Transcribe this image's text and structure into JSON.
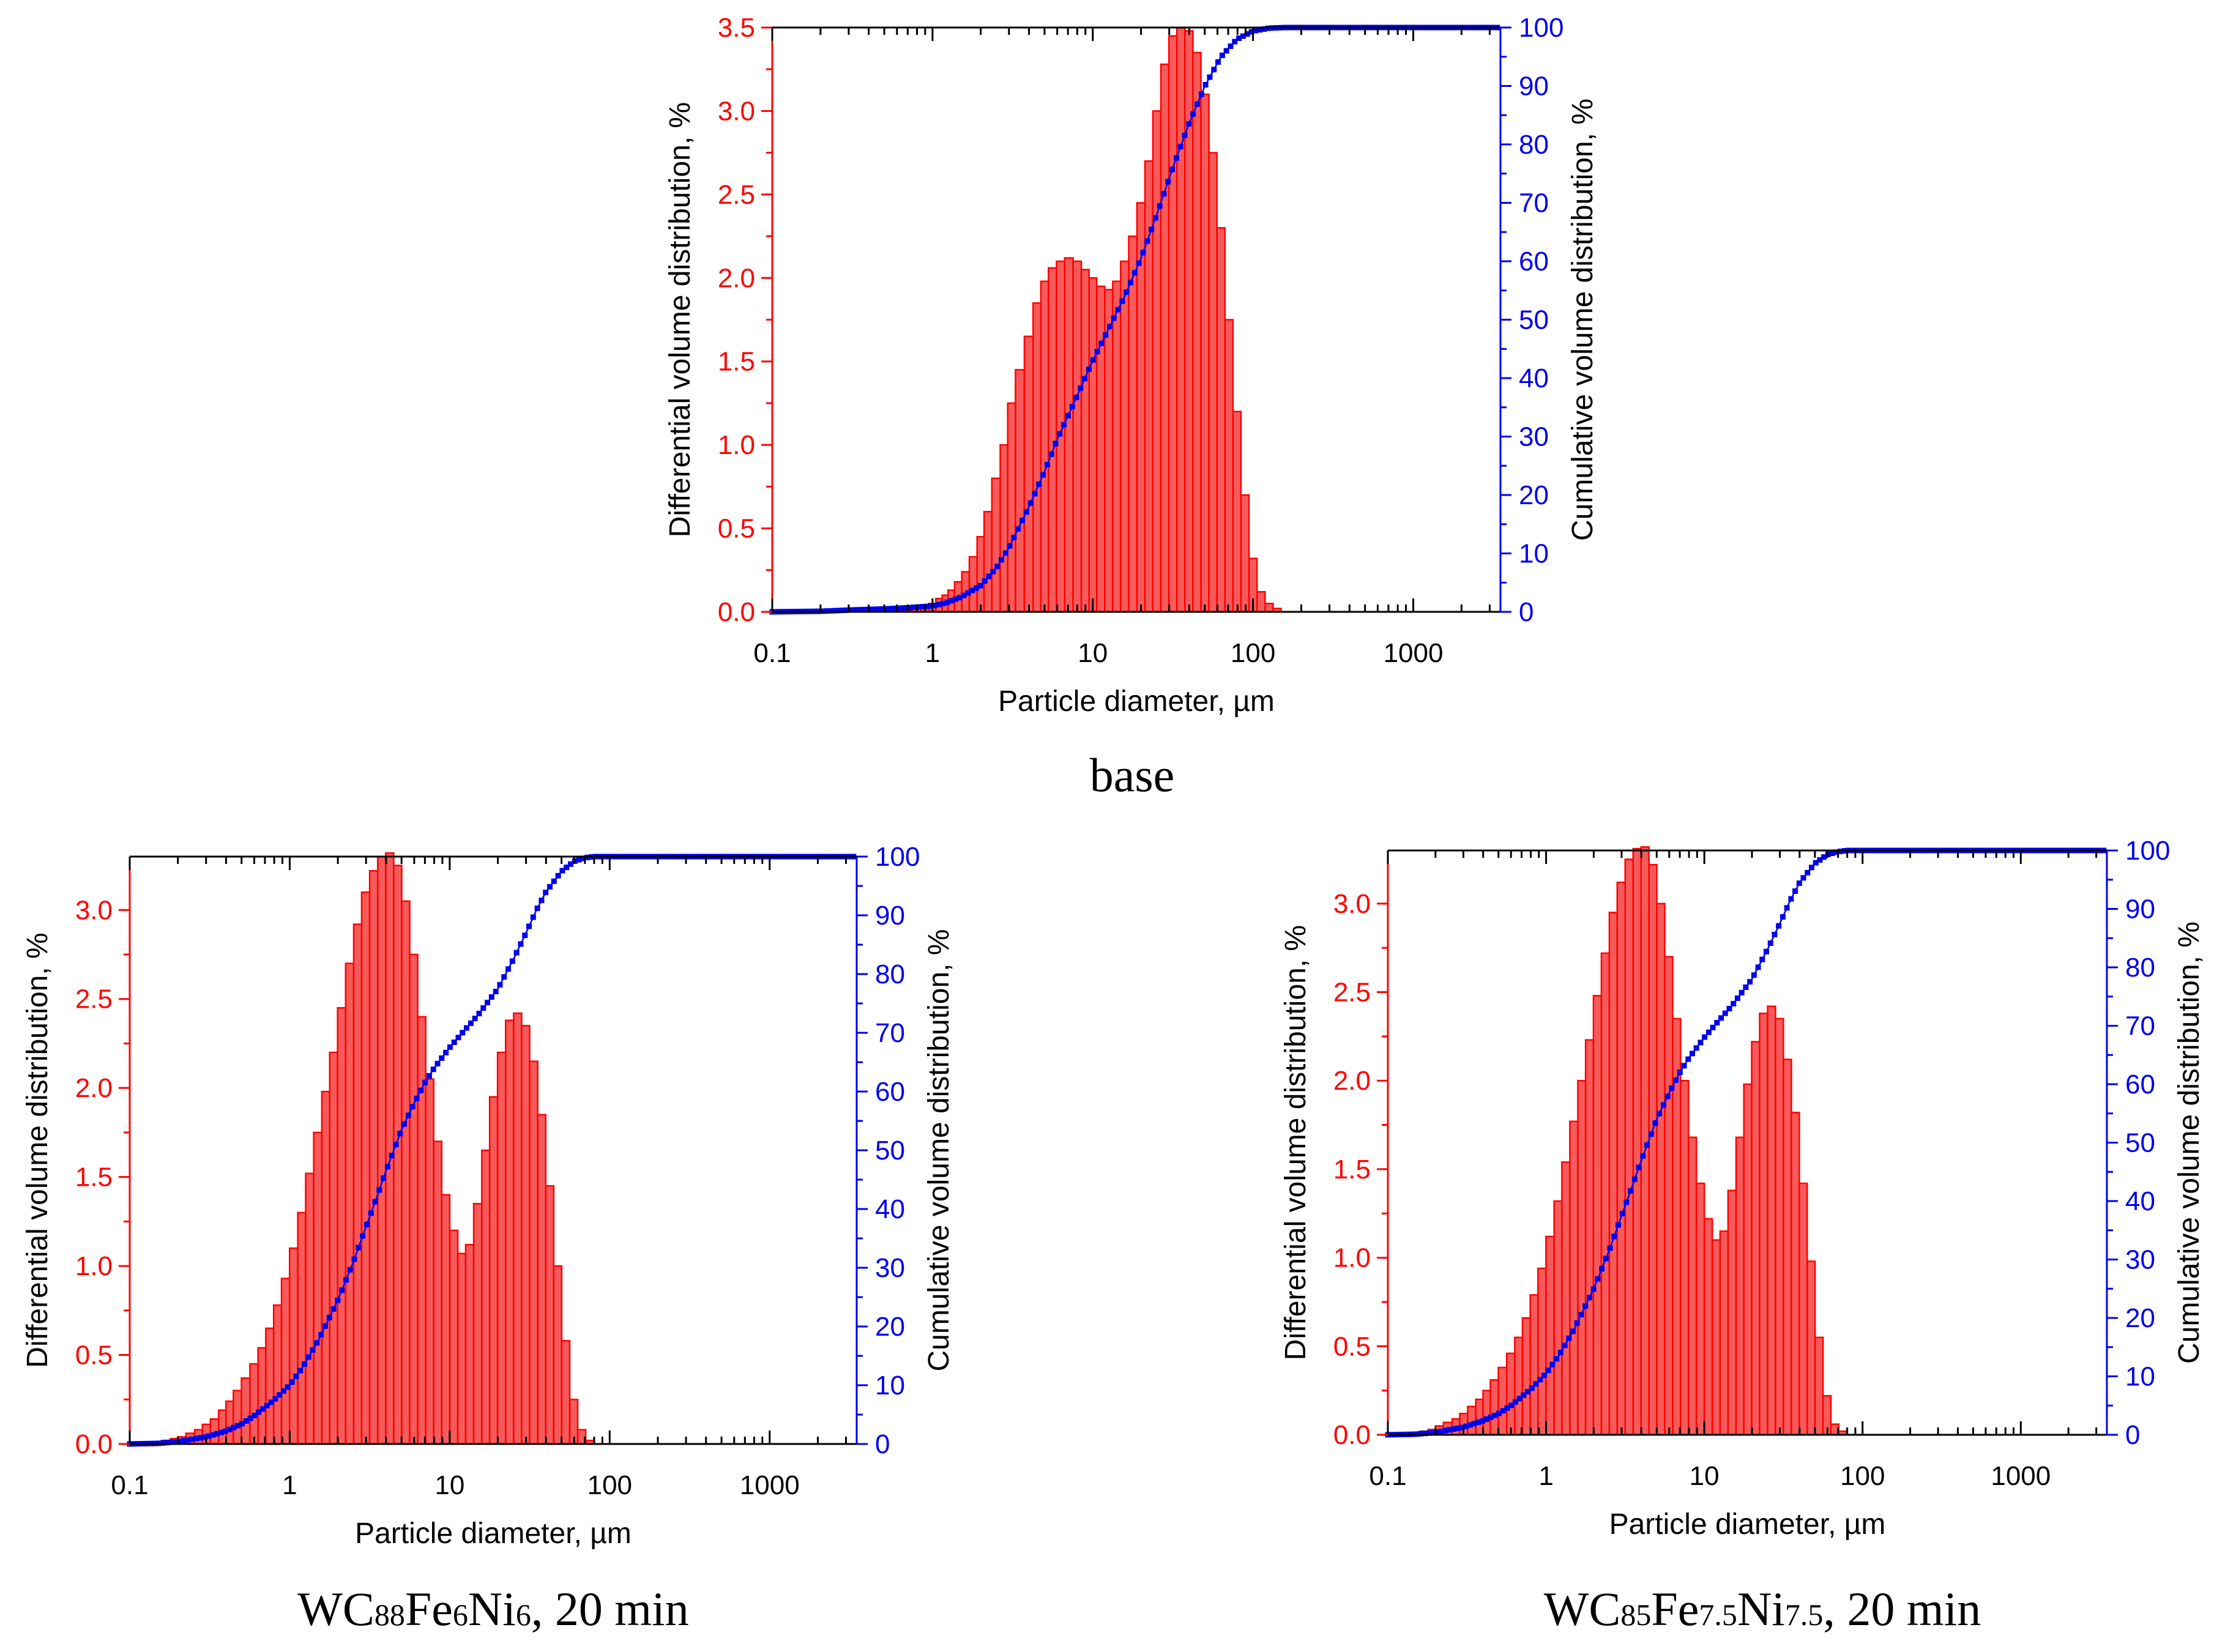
{
  "colors": {
    "differential": "#ff0000",
    "cumulative": "#0000ee",
    "axis": "#000000"
  },
  "chart_data": [
    {
      "type": "bar",
      "panel": "base",
      "caption": "base",
      "xscale": "log",
      "xlim": [
        0.1,
        3500
      ],
      "xticks": [
        0.1,
        1,
        10,
        100,
        1000
      ],
      "xtick_labels": [
        "0.1",
        "1",
        "10",
        "100",
        "1000"
      ],
      "xlabel": "Particle diameter, µm",
      "ylabel": "Differential volume distribution, %",
      "y2label": "Cumulative volume distribution, %",
      "ylim": [
        0,
        3.5
      ],
      "yticks": [
        0.0,
        0.5,
        1.0,
        1.5,
        2.0,
        2.5,
        3.0,
        3.5
      ],
      "ytick_labels": [
        "0.0",
        "0.5",
        "1.0",
        "1.5",
        "2.0",
        "2.5",
        "3.0",
        "3.5"
      ],
      "y2lim": [
        0,
        100
      ],
      "y2ticks": [
        0,
        10,
        20,
        30,
        40,
        50,
        60,
        70,
        80,
        90,
        100
      ],
      "y2tick_labels": [
        "0",
        "10",
        "20",
        "30",
        "40",
        "50",
        "60",
        "70",
        "80",
        "90",
        "100"
      ],
      "series": [
        {
          "name": "Differential volume distribution",
          "kind": "bar",
          "axis": "left",
          "x": [
            0.25,
            0.3,
            0.35,
            0.4,
            0.5,
            0.6,
            0.7,
            0.8,
            0.9,
            1.0,
            1.1,
            1.2,
            1.3,
            1.45,
            1.6,
            1.8,
            2.0,
            2.2,
            2.5,
            2.8,
            3.1,
            3.5,
            4.0,
            4.5,
            5.0,
            5.6,
            6.3,
            7.1,
            8.0,
            9.0,
            10.0,
            11.2,
            12.6,
            14.1,
            15.8,
            17.8,
            20.0,
            22.4,
            25.1,
            28.2,
            31.6,
            35.5,
            39.8,
            44.7,
            50.1,
            56.2,
            63.1,
            70.8,
            79.4,
            89.1,
            100.0,
            112.2,
            125.9,
            141.3
          ],
          "values": [
            0.01,
            0.02,
            0.02,
            0.02,
            0.01,
            0.01,
            0.01,
            0.02,
            0.03,
            0.05,
            0.08,
            0.1,
            0.13,
            0.18,
            0.24,
            0.33,
            0.45,
            0.6,
            0.8,
            1.0,
            1.25,
            1.45,
            1.65,
            1.85,
            1.98,
            2.06,
            2.1,
            2.12,
            2.1,
            2.05,
            2.0,
            1.95,
            1.93,
            1.98,
            2.1,
            2.25,
            2.45,
            2.7,
            3.0,
            3.28,
            3.45,
            3.5,
            3.48,
            3.35,
            3.1,
            2.75,
            2.3,
            1.75,
            1.2,
            0.7,
            0.32,
            0.12,
            0.05,
            0.02
          ]
        },
        {
          "name": "Cumulative volume distribution",
          "kind": "dotted-line",
          "axis": "right",
          "x": [
            0.1,
            0.2,
            0.3,
            0.5,
            0.7,
            1.0,
            1.2,
            1.5,
            2.0,
            2.5,
            3.0,
            4.0,
            5.0,
            6.0,
            8.0,
            10.0,
            12.6,
            15.8,
            20.0,
            25.1,
            31.6,
            39.8,
            50.1,
            63.1,
            79.4,
            100.0,
            125.9,
            158.5,
            200.0,
            400.0,
            1000.0,
            2000.0,
            3500.0
          ],
          "values": [
            0.0,
            0.1,
            0.3,
            0.5,
            0.7,
            1.0,
            1.5,
            2.5,
            4.5,
            7.5,
            11.0,
            18.0,
            24.0,
            29.5,
            37.0,
            43.0,
            48.5,
            54.0,
            60.5,
            68.0,
            76.0,
            83.5,
            90.0,
            95.0,
            98.0,
            99.4,
            99.9,
            100.0,
            100.0,
            100.0,
            100.0,
            100.0,
            100.0
          ]
        }
      ]
    },
    {
      "type": "bar",
      "panel": "wc88",
      "caption_parts": [
        "WC",
        "88",
        "Fe",
        "6",
        "Ni",
        "6",
        ", 20 min"
      ],
      "xscale": "log",
      "xlim": [
        0.1,
        3500
      ],
      "xticks": [
        0.1,
        1,
        10,
        100,
        1000
      ],
      "xtick_labels": [
        "0.1",
        "1",
        "10",
        "100",
        "1000"
      ],
      "xlabel": "Particle diameter, µm",
      "ylabel": "Differential volume distribution, %",
      "y2label": "Cumulative volume distribution, %",
      "ylim": [
        0,
        3.3
      ],
      "yticks": [
        0.0,
        0.5,
        1.0,
        1.5,
        2.0,
        2.5,
        3.0
      ],
      "ytick_labels": [
        "0.0",
        "0.5",
        "1.0",
        "1.5",
        "2.0",
        "2.5",
        "3.0"
      ],
      "y2lim": [
        0,
        100
      ],
      "y2ticks": [
        0,
        10,
        20,
        30,
        40,
        50,
        60,
        70,
        80,
        90,
        100
      ],
      "y2tick_labels": [
        "0",
        "10",
        "20",
        "30",
        "40",
        "50",
        "60",
        "70",
        "80",
        "90",
        "100"
      ],
      "series": [
        {
          "name": "Differential volume distribution",
          "kind": "bar",
          "axis": "left",
          "x": [
            0.15,
            0.17,
            0.19,
            0.21,
            0.24,
            0.27,
            0.3,
            0.34,
            0.38,
            0.42,
            0.47,
            0.53,
            0.6,
            0.67,
            0.75,
            0.84,
            0.94,
            1.06,
            1.19,
            1.33,
            1.5,
            1.68,
            1.88,
            2.11,
            2.37,
            2.66,
            2.98,
            3.35,
            3.76,
            4.22,
            4.73,
            5.31,
            5.96,
            6.68,
            7.5,
            8.41,
            9.44,
            10.6,
            11.9,
            13.3,
            15.0,
            16.8,
            18.8,
            21.1,
            23.7,
            26.6,
            29.8,
            33.5,
            37.6,
            42.2,
            47.3,
            53.1,
            59.6,
            66.8,
            75.0
          ],
          "values": [
            0.01,
            0.02,
            0.03,
            0.04,
            0.06,
            0.08,
            0.11,
            0.14,
            0.19,
            0.24,
            0.3,
            0.37,
            0.45,
            0.54,
            0.65,
            0.78,
            0.93,
            1.1,
            1.3,
            1.52,
            1.75,
            1.98,
            2.2,
            2.45,
            2.7,
            2.92,
            3.1,
            3.22,
            3.3,
            3.32,
            3.25,
            3.05,
            2.75,
            2.4,
            2.05,
            1.7,
            1.4,
            1.2,
            1.07,
            1.12,
            1.35,
            1.65,
            1.95,
            2.2,
            2.38,
            2.42,
            2.35,
            2.15,
            1.85,
            1.45,
            1.0,
            0.58,
            0.25,
            0.08,
            0.02
          ]
        },
        {
          "name": "Cumulative volume distribution",
          "kind": "dotted-line",
          "axis": "right",
          "x": [
            0.1,
            0.15,
            0.2,
            0.3,
            0.4,
            0.5,
            0.6,
            0.8,
            1.0,
            1.2,
            1.5,
            2.0,
            2.5,
            3.0,
            3.5,
            4.0,
            5.0,
            6.0,
            7.0,
            8.0,
            10.0,
            12.0,
            15.0,
            20.0,
            25.0,
            30.0,
            35.0,
            40.0,
            50.0,
            60.0,
            70.0,
            80.0,
            100.0,
            200.0,
            500.0,
            1000.0,
            2000.0,
            3500.0
          ],
          "values": [
            0.0,
            0.1,
            0.4,
            1.2,
            2.2,
            3.4,
            4.8,
            7.5,
            10.0,
            13.0,
            17.5,
            24.5,
            31.0,
            37.0,
            42.0,
            46.5,
            53.5,
            58.0,
            61.5,
            64.0,
            67.5,
            70.0,
            73.0,
            77.5,
            82.5,
            87.0,
            91.0,
            94.0,
            97.5,
            99.2,
            99.8,
            100.0,
            100.0,
            100.0,
            100.0,
            100.0,
            100.0,
            100.0
          ]
        }
      ]
    },
    {
      "type": "bar",
      "panel": "wc85",
      "caption_parts": [
        "WC",
        "85",
        "Fe",
        "7.5",
        "Ni",
        "7.5",
        ", 20 min"
      ],
      "xscale": "log",
      "xlim": [
        0.1,
        3500
      ],
      "xticks": [
        0.1,
        1,
        10,
        100,
        1000
      ],
      "xtick_labels": [
        "0.1",
        "1",
        "10",
        "100",
        "1000"
      ],
      "xlabel": "Particle diameter, µm",
      "ylabel": "Differential volume distribution, %",
      "y2label": "Cumulative volume distribution, %",
      "ylim": [
        0,
        3.3
      ],
      "yticks": [
        0.0,
        0.5,
        1.0,
        1.5,
        2.0,
        2.5,
        3.0
      ],
      "ytick_labels": [
        "0.0",
        "0.5",
        "1.0",
        "1.5",
        "2.0",
        "2.5",
        "3.0"
      ],
      "y2lim": [
        0,
        100
      ],
      "y2ticks": [
        0,
        10,
        20,
        30,
        40,
        50,
        60,
        70,
        80,
        90,
        100
      ],
      "y2tick_labels": [
        "0",
        "10",
        "20",
        "30",
        "40",
        "50",
        "60",
        "70",
        "80",
        "90",
        "100"
      ],
      "series": [
        {
          "name": "Differential volume distribution",
          "kind": "bar",
          "axis": "left",
          "x": [
            0.15,
            0.17,
            0.19,
            0.21,
            0.24,
            0.27,
            0.3,
            0.34,
            0.38,
            0.42,
            0.47,
            0.53,
            0.6,
            0.67,
            0.75,
            0.84,
            0.94,
            1.06,
            1.19,
            1.33,
            1.5,
            1.68,
            1.88,
            2.11,
            2.37,
            2.66,
            2.98,
            3.35,
            3.76,
            4.22,
            4.73,
            5.31,
            5.96,
            6.68,
            7.5,
            8.41,
            9.44,
            10.6,
            11.9,
            13.3,
            15.0,
            16.8,
            18.8,
            21.1,
            23.7,
            26.6,
            29.8,
            33.5,
            37.6,
            42.2,
            47.3,
            53.1,
            59.6,
            66.8,
            75.0
          ],
          "values": [
            0.01,
            0.02,
            0.03,
            0.05,
            0.07,
            0.09,
            0.12,
            0.16,
            0.2,
            0.25,
            0.31,
            0.38,
            0.46,
            0.55,
            0.66,
            0.79,
            0.94,
            1.12,
            1.32,
            1.54,
            1.77,
            2.0,
            2.23,
            2.48,
            2.72,
            2.95,
            3.12,
            3.25,
            3.31,
            3.32,
            3.22,
            3.0,
            2.7,
            2.35,
            2.0,
            1.68,
            1.42,
            1.22,
            1.1,
            1.15,
            1.38,
            1.68,
            1.98,
            2.22,
            2.38,
            2.42,
            2.35,
            2.12,
            1.82,
            1.42,
            0.98,
            0.55,
            0.22,
            0.06,
            0.02
          ]
        },
        {
          "name": "Cumulative volume distribution",
          "kind": "dotted-line",
          "axis": "right",
          "x": [
            0.1,
            0.15,
            0.2,
            0.3,
            0.4,
            0.5,
            0.6,
            0.8,
            1.0,
            1.2,
            1.5,
            2.0,
            2.5,
            3.0,
            3.5,
            4.0,
            5.0,
            6.0,
            7.0,
            8.0,
            10.0,
            12.0,
            15.0,
            20.0,
            25.0,
            30.0,
            35.0,
            40.0,
            50.0,
            60.0,
            70.0,
            80.0,
            100.0,
            200.0,
            500.0,
            1000.0,
            2000.0,
            3500.0
          ],
          "values": [
            0.0,
            0.1,
            0.4,
            1.3,
            2.4,
            3.6,
            5.0,
            7.8,
            10.5,
            13.5,
            18.0,
            25.0,
            31.5,
            37.5,
            42.5,
            47.0,
            54.0,
            58.5,
            62.0,
            64.5,
            68.0,
            70.5,
            73.5,
            78.0,
            83.0,
            87.5,
            91.5,
            94.5,
            97.8,
            99.3,
            99.8,
            100.0,
            100.0,
            100.0,
            100.0,
            100.0,
            100.0,
            100.0
          ]
        }
      ]
    }
  ]
}
